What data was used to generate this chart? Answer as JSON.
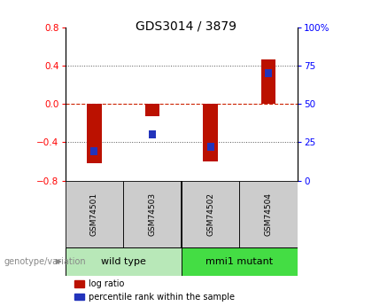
{
  "title": "GDS3014 / 3879",
  "samples": [
    "GSM74501",
    "GSM74503",
    "GSM74502",
    "GSM74504"
  ],
  "log_ratios": [
    -0.62,
    -0.13,
    -0.6,
    0.47
  ],
  "percentile_ranks": [
    19,
    30,
    22,
    70
  ],
  "groups": [
    "wild type",
    "wild type",
    "mmi1 mutant",
    "mmi1 mutant"
  ],
  "group_labels": [
    "wild type",
    "mmi1 mutant"
  ],
  "group_colors": [
    "#b8e8b8",
    "#44dd44"
  ],
  "ylim_left": [
    -0.8,
    0.8
  ],
  "ylim_right": [
    0,
    100
  ],
  "left_yticks": [
    -0.8,
    -0.4,
    0.0,
    0.4,
    0.8
  ],
  "right_yticks": [
    0,
    25,
    50,
    75,
    100
  ],
  "right_yticklabels": [
    "0",
    "25",
    "50",
    "75",
    "100%"
  ],
  "bar_color": "#bb1100",
  "percentile_color": "#2233bb",
  "zero_line_color": "#cc2200",
  "dotted_color": "#555555",
  "sample_box_color": "#cccccc",
  "bar_width": 0.25,
  "percentile_bar_width": 0.12,
  "genotype_label": "genotype/variation",
  "legend_log_ratio": "log ratio",
  "legend_percentile": "percentile rank within the sample",
  "title_fontsize": 10,
  "tick_fontsize": 7.5,
  "sample_fontsize": 6.5,
  "group_fontsize": 8,
  "legend_fontsize": 7
}
